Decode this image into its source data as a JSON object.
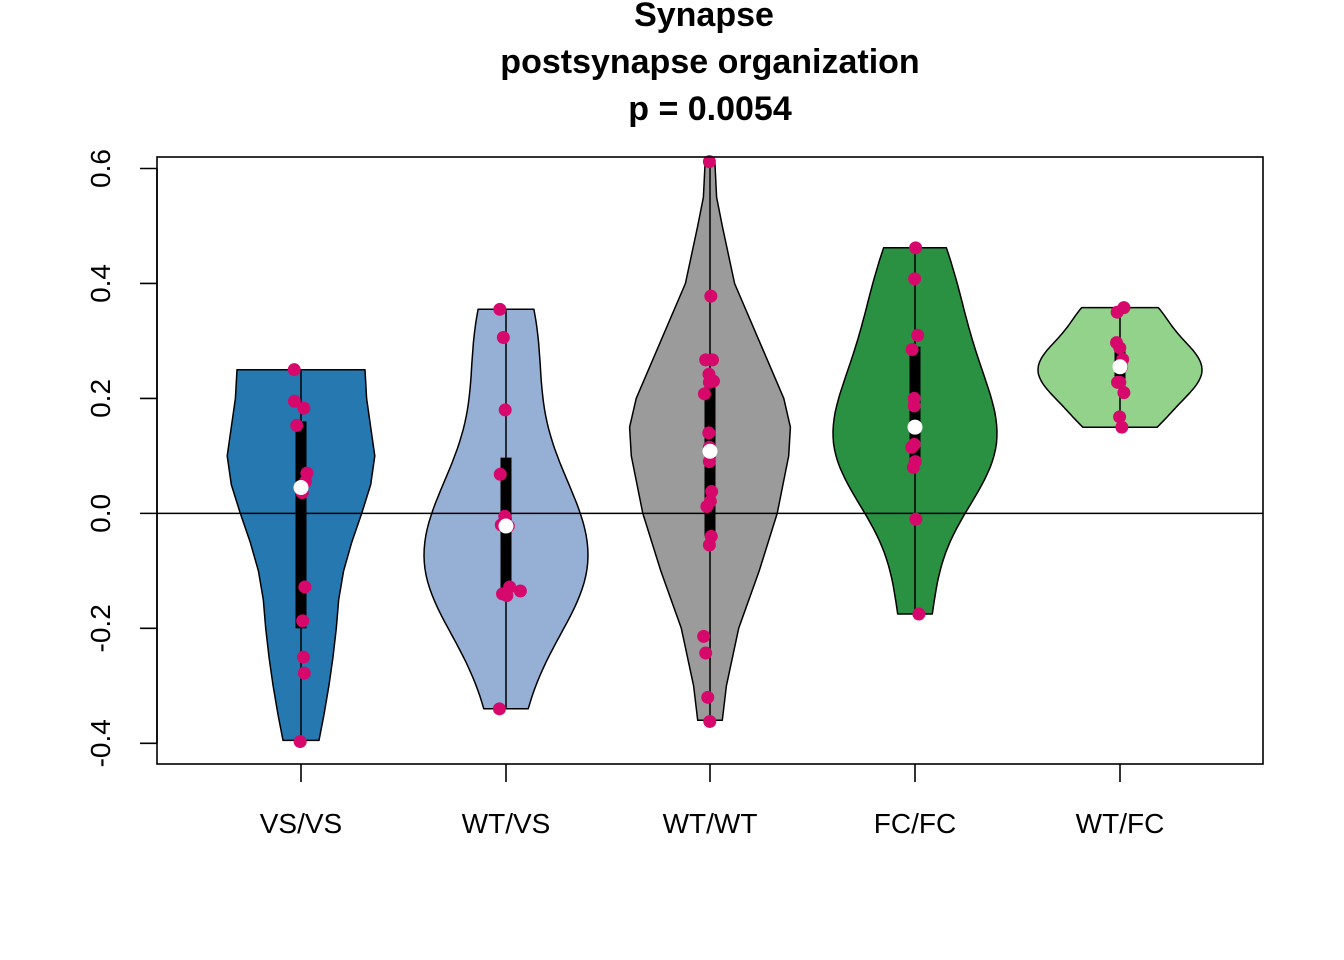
{
  "chart_data": {
    "type": "violin",
    "title_lines": [
      "Synapse",
      "postsynapse organization",
      "p = 0.0054"
    ],
    "xlabel": "",
    "ylabel": "",
    "ylim": [
      -0.436,
      0.62
    ],
    "y_ticks": [
      -0.4,
      -0.2,
      0.0,
      0.2,
      0.4,
      0.6
    ],
    "y_tick_labels": [
      "-0.4",
      "-0.2",
      "0.0",
      "0.2",
      "0.4",
      "0.6"
    ],
    "reference_line_y": 0.0,
    "point_color": "#d6086b",
    "median_color": "#ffffff",
    "groups": [
      {
        "label": "VS/VS",
        "fill": "#2678b0",
        "min": -0.395,
        "max": 0.25,
        "q1": -0.2,
        "q3": 0.16,
        "median": 0.045,
        "points": [
          [
            -0.033,
            0.25
          ],
          [
            0.014,
            0.183
          ],
          [
            -0.032,
            0.195
          ],
          [
            -0.021,
            0.153
          ],
          [
            0.029,
            0.07
          ],
          [
            0.022,
            0.055
          ],
          [
            0.006,
            0.036
          ],
          [
            0.019,
            -0.128
          ],
          [
            0.008,
            -0.187
          ],
          [
            0.012,
            -0.25
          ],
          [
            0.016,
            -0.278
          ],
          [
            -0.004,
            -0.397
          ]
        ],
        "density": [
          [
            -0.395,
            0.22
          ],
          [
            -0.35,
            0.28
          ],
          [
            -0.3,
            0.34
          ],
          [
            -0.25,
            0.39
          ],
          [
            -0.2,
            0.43
          ],
          [
            -0.15,
            0.46
          ],
          [
            -0.1,
            0.52
          ],
          [
            -0.05,
            0.62
          ],
          [
            0.0,
            0.74
          ],
          [
            0.05,
            0.85
          ],
          [
            0.1,
            0.9
          ],
          [
            0.15,
            0.85
          ],
          [
            0.2,
            0.8
          ],
          [
            0.25,
            0.78
          ]
        ]
      },
      {
        "label": "WT/VS",
        "fill": "#96afd5",
        "min": -0.34,
        "max": 0.355,
        "q1": -0.13,
        "q3": 0.097,
        "median": -0.022,
        "points": [
          [
            -0.03,
            0.355
          ],
          [
            -0.013,
            0.306
          ],
          [
            -0.004,
            0.18
          ],
          [
            -0.028,
            0.068
          ],
          [
            -0.006,
            -0.005
          ],
          [
            -0.023,
            -0.02
          ],
          [
            0.011,
            -0.022
          ],
          [
            0.07,
            -0.135
          ],
          [
            0.018,
            -0.128
          ],
          [
            -0.017,
            -0.14
          ],
          [
            0.004,
            -0.143
          ],
          [
            -0.032,
            -0.34
          ]
        ]
      },
      {
        "label": "WT/WT",
        "fill": "#9b9b9b",
        "min": -0.36,
        "max": 0.61,
        "q1": -0.04,
        "q3": 0.225,
        "median": 0.108,
        "points": [
          [
            -0.003,
            0.612
          ],
          [
            0.004,
            0.378
          ],
          [
            0.012,
            0.267
          ],
          [
            -0.021,
            0.267
          ],
          [
            -0.005,
            0.242
          ],
          [
            -0.003,
            0.228
          ],
          [
            0.017,
            0.23
          ],
          [
            -0.027,
            0.208
          ],
          [
            -0.006,
            0.14
          ],
          [
            -0.003,
            0.115
          ],
          [
            0.001,
            0.108
          ],
          [
            -0.003,
            0.09
          ],
          [
            0.002,
            0.021
          ],
          [
            -0.015,
            0.012
          ],
          [
            0.008,
            0.038
          ],
          [
            0.006,
            -0.04
          ],
          [
            -0.003,
            -0.055
          ],
          [
            -0.031,
            -0.214
          ],
          [
            -0.021,
            -0.243
          ],
          [
            -0.011,
            -0.32
          ],
          [
            -0.001,
            -0.362
          ]
        ],
        "density": [
          [
            -0.36,
            0.15
          ],
          [
            -0.3,
            0.2
          ],
          [
            -0.2,
            0.35
          ],
          [
            -0.1,
            0.6
          ],
          [
            0.0,
            0.82
          ],
          [
            0.1,
            0.96
          ],
          [
            0.15,
            0.98
          ],
          [
            0.2,
            0.9
          ],
          [
            0.3,
            0.6
          ],
          [
            0.4,
            0.3
          ],
          [
            0.5,
            0.15
          ],
          [
            0.55,
            0.08
          ],
          [
            0.61,
            0.06
          ]
        ]
      },
      {
        "label": "FC/FC",
        "fill": "#2a9142",
        "min": -0.175,
        "max": 0.462,
        "q1": 0.09,
        "q3": 0.29,
        "median": 0.15,
        "points": [
          [
            0.003,
            0.462
          ],
          [
            -0.002,
            0.408
          ],
          [
            0.013,
            0.31
          ],
          [
            -0.014,
            0.285
          ],
          [
            -0.004,
            0.2
          ],
          [
            -0.004,
            0.187
          ],
          [
            -0.004,
            0.12
          ],
          [
            -0.016,
            0.115
          ],
          [
            0.001,
            0.09
          ],
          [
            -0.008,
            0.08
          ],
          [
            0.004,
            -0.01
          ],
          [
            0.019,
            -0.175
          ]
        ]
      },
      {
        "label": "WT/FC",
        "fill": "#92d28b",
        "min": 0.15,
        "max": 0.358,
        "q1": 0.22,
        "q3": 0.29,
        "median": 0.255,
        "points": [
          [
            0.019,
            0.358
          ],
          [
            -0.014,
            0.35
          ],
          [
            -0.017,
            0.297
          ],
          [
            -0.001,
            0.288
          ],
          [
            0.013,
            0.268
          ],
          [
            0.008,
            0.255
          ],
          [
            -0.012,
            0.228
          ],
          [
            -0.001,
            0.228
          ],
          [
            0.019,
            0.21
          ],
          [
            -0.002,
            0.168
          ],
          [
            0.009,
            0.15
          ]
        ]
      }
    ]
  }
}
